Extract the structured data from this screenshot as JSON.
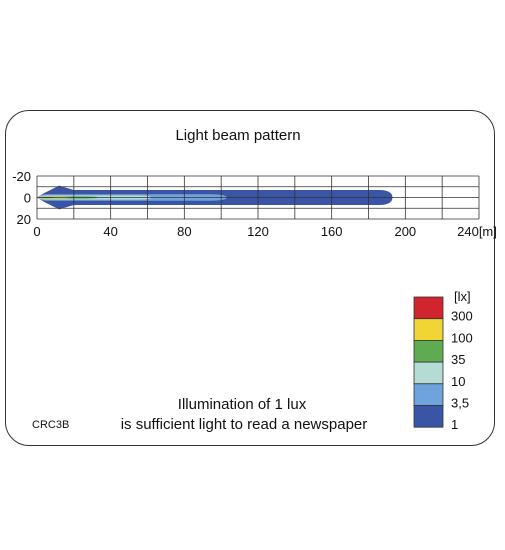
{
  "chart_data": {
    "type": "heatmap",
    "title": "Light beam pattern",
    "x_ticks": [
      "0",
      "40",
      "80",
      "120",
      "160",
      "200",
      "240[m]"
    ],
    "y_ticks": [
      "-20",
      "0",
      "20"
    ],
    "xlim": [
      0,
      240
    ],
    "ylim": [
      -20,
      20
    ],
    "grid": true,
    "legend": {
      "unit": "[lx]",
      "position": "bottom-right",
      "levels": [
        {
          "label": "300",
          "color": "#d0252e"
        },
        {
          "label": "100",
          "color": "#f1d534"
        },
        {
          "label": "35",
          "color": "#5fab52"
        },
        {
          "label": "10",
          "color": "#b4dcd5"
        },
        {
          "label": "3,5",
          "color": "#6fa3dc"
        },
        {
          "label": "1",
          "color": "#3a55a6"
        }
      ]
    },
    "contours": [
      {
        "lux": "1",
        "max_distance": 193,
        "half_width": 7
      },
      {
        "lux": "3,5",
        "max_distance": 103,
        "half_width": 3
      },
      {
        "lux": "10",
        "max_distance": 62,
        "half_width": 2
      },
      {
        "lux": "35",
        "max_distance": 33,
        "half_width": 1
      },
      {
        "lux": "100",
        "max_distance": 18,
        "half_width": 0.8
      },
      {
        "lux": "300",
        "max_distance": 9,
        "half_width": 0.5
      }
    ]
  },
  "caption": {
    "line1": "Illumination of 1 lux",
    "line2": "is sufficient light to read a newspaper"
  },
  "code": "CRC3B"
}
